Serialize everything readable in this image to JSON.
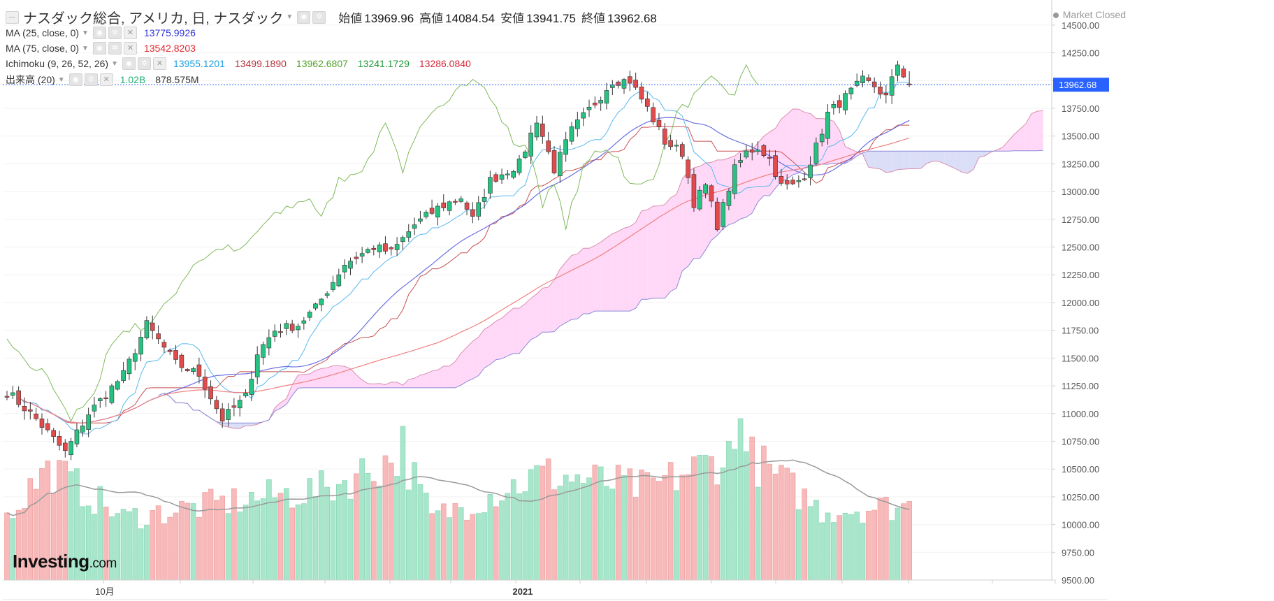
{
  "header": {
    "title": "ナスダック総合, アメリカ, 日, ナスダック",
    "ohlc": [
      {
        "key": "始値",
        "value": "13969.96"
      },
      {
        "key": "高値",
        "value": "14084.54"
      },
      {
        "key": "安値",
        "value": "13941.75"
      },
      {
        "key": "終値",
        "value": "13962.68"
      }
    ],
    "market_status": "Market Closed"
  },
  "indicators": [
    {
      "label": "MA (25, close, 0)",
      "values": [
        {
          "text": "13775.9926",
          "color": "#2f33d6"
        }
      ]
    },
    {
      "label": "MA (75, close, 0)",
      "values": [
        {
          "text": "13542.8203",
          "color": "#e2242d"
        }
      ]
    },
    {
      "label": "Ichimoku (9, 26, 52, 26)",
      "values": [
        {
          "text": "13955.1201",
          "color": "#1c9fe0"
        },
        {
          "text": "13499.1890",
          "color": "#b5333a"
        },
        {
          "text": "13962.6807",
          "color": "#53a12a"
        },
        {
          "text": "13241.1729",
          "color": "#1f9a3a"
        },
        {
          "text": "13286.0840",
          "color": "#d9283b"
        }
      ]
    },
    {
      "label": "出来高 (20)",
      "values": [
        {
          "text": "1.02B",
          "color": "#26b07a"
        },
        {
          "text": "878.575M",
          "color": "#333333"
        }
      ]
    }
  ],
  "brand": {
    "main": "Investing",
    "suffix": ".com"
  },
  "chart_data": {
    "type": "candlestick",
    "title": "ナスダック総合, アメリカ, 日, ナスダック",
    "yaxis": {
      "range": [
        9500,
        14600
      ],
      "ticks": [
        "14500.00",
        "14250.00",
        "14000.00",
        "13750.00",
        "13500.00",
        "13250.00",
        "13000.00",
        "12750.00",
        "12500.00",
        "12250.00",
        "12000.00",
        "11750.00",
        "11500.00",
        "11250.00",
        "11000.00",
        "10750.00",
        "10500.00",
        "10250.00",
        "10000.00",
        "9750.00",
        "9500.00"
      ],
      "last_price_label": "13962.68",
      "last_price": 13962.68
    },
    "xaxis": {
      "labels": [
        "10月",
        "2021"
      ]
    },
    "colors": {
      "up": "#26c281",
      "down": "#e14b4b",
      "cloud_bull": "#ffd6f7",
      "cloud_bear": "#d8dcf7",
      "ma25": "#6a6fe0",
      "ma75": "#f08080",
      "tenkan": "#58b8f0",
      "kijun": "#c85050",
      "chikou": "#7fba5a",
      "volume_ma": "#9a9a9a",
      "last_price": "#2962ff"
    },
    "close_anchors": [
      {
        "x": 0,
        "close": 11200
      },
      {
        "x": 5,
        "close": 10950
      },
      {
        "x": 10,
        "close": 10650
      },
      {
        "x": 14,
        "close": 11000
      },
      {
        "x": 20,
        "close": 11350
      },
      {
        "x": 24,
        "close": 11800
      },
      {
        "x": 29,
        "close": 11450
      },
      {
        "x": 33,
        "close": 11350
      },
      {
        "x": 37,
        "close": 10950
      },
      {
        "x": 41,
        "close": 11150
      },
      {
        "x": 43,
        "close": 11550
      },
      {
        "x": 46,
        "close": 11750
      },
      {
        "x": 50,
        "close": 11800
      },
      {
        "x": 53,
        "close": 11950
      },
      {
        "x": 58,
        "close": 12350
      },
      {
        "x": 63,
        "close": 12500
      },
      {
        "x": 66,
        "close": 12450
      },
      {
        "x": 70,
        "close": 12700
      },
      {
        "x": 74,
        "close": 12850
      },
      {
        "x": 78,
        "close": 12950
      },
      {
        "x": 80,
        "close": 12750
      },
      {
        "x": 83,
        "close": 13100
      },
      {
        "x": 88,
        "close": 13250
      },
      {
        "x": 91,
        "close": 13650
      },
      {
        "x": 94,
        "close": 13200
      },
      {
        "x": 97,
        "close": 13550
      },
      {
        "x": 101,
        "close": 13800
      },
      {
        "x": 104,
        "close": 14000
      },
      {
        "x": 107,
        "close": 14000
      },
      {
        "x": 110,
        "close": 13750
      },
      {
        "x": 113,
        "close": 13450
      },
      {
        "x": 116,
        "close": 13350
      },
      {
        "x": 118,
        "close": 12900
      },
      {
        "x": 120,
        "close": 13050
      },
      {
        "x": 122,
        "close": 12700
      },
      {
        "x": 125,
        "close": 13200
      },
      {
        "x": 127,
        "close": 13350
      },
      {
        "x": 129,
        "close": 13400
      },
      {
        "x": 131,
        "close": 13300
      },
      {
        "x": 133,
        "close": 13050
      },
      {
        "x": 135,
        "close": 13050
      },
      {
        "x": 137,
        "close": 13150
      },
      {
        "x": 139,
        "close": 13400
      },
      {
        "x": 141,
        "close": 13700
      },
      {
        "x": 144,
        "close": 13850
      },
      {
        "x": 147,
        "close": 14000
      },
      {
        "x": 149,
        "close": 13950
      },
      {
        "x": 151,
        "close": 13850
      },
      {
        "x": 153,
        "close": 14150
      },
      {
        "x": 155,
        "close": 13962.68
      }
    ],
    "volume_anchors": [
      {
        "x": 0,
        "v": 0.86
      },
      {
        "x": 7,
        "v": 1.55
      },
      {
        "x": 20,
        "v": 0.85
      },
      {
        "x": 41,
        "v": 1.1
      },
      {
        "x": 55,
        "v": 1.25
      },
      {
        "x": 68,
        "v": 1.72
      },
      {
        "x": 73,
        "v": 0.85
      },
      {
        "x": 92,
        "v": 1.45
      },
      {
        "x": 102,
        "v": 1.35
      },
      {
        "x": 110,
        "v": 1.25
      },
      {
        "x": 126,
        "v": 1.78
      },
      {
        "x": 140,
        "v": 0.95
      },
      {
        "x": 155,
        "v": 1.02
      }
    ],
    "volume_last": "1.02B",
    "volume_ma_last": "878.575M",
    "ma25_last": 13775.9926,
    "ma75_last": 13542.8203,
    "ichimoku_last": {
      "tenkan": 13955.1201,
      "kijun": 13499.189,
      "chikou": 13962.6807,
      "senkou_a": 13241.1729,
      "senkou_b": 13286.084
    }
  }
}
